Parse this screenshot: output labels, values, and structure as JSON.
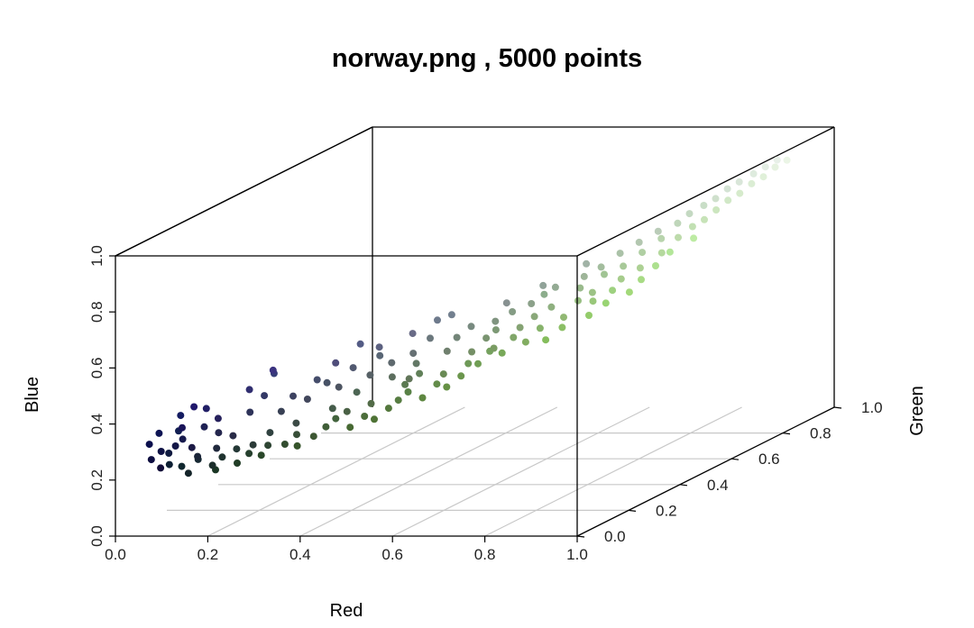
{
  "chart_data": {
    "type": "scatter",
    "projection": "3d",
    "title": "norway.png , 5000 points",
    "xlabel": "Red",
    "ylabel": "Green",
    "zlabel": "Blue",
    "xlim": [
      0.0,
      1.0
    ],
    "ylim": [
      0.0,
      1.0
    ],
    "zlim": [
      0.0,
      1.0
    ],
    "x_ticks": [
      "0.0",
      "0.2",
      "0.4",
      "0.6",
      "0.8",
      "1.0"
    ],
    "y_ticks": [
      "0.0",
      "0.2",
      "0.4",
      "0.6",
      "0.8",
      "1.0"
    ],
    "z_ticks": [
      "0.0",
      "0.2",
      "0.4",
      "0.6",
      "0.8",
      "1.0"
    ],
    "grid": true,
    "n_points": 5000,
    "point_color": "rgb(red, green, blue)",
    "points": [
      [
        0.05,
        0.05,
        0.25
      ],
      [
        0.06,
        0.07,
        0.27
      ],
      [
        0.04,
        0.06,
        0.3
      ],
      [
        0.07,
        0.05,
        0.22
      ],
      [
        0.08,
        0.09,
        0.28
      ],
      [
        0.05,
        0.08,
        0.33
      ],
      [
        0.09,
        0.1,
        0.3
      ],
      [
        0.06,
        0.1,
        0.25
      ],
      [
        0.1,
        0.08,
        0.35
      ],
      [
        0.07,
        0.12,
        0.32
      ],
      [
        0.11,
        0.1,
        0.27
      ],
      [
        0.12,
        0.13,
        0.33
      ],
      [
        0.08,
        0.11,
        0.38
      ],
      [
        0.13,
        0.12,
        0.4
      ],
      [
        0.1,
        0.14,
        0.22
      ],
      [
        0.14,
        0.15,
        0.3
      ],
      [
        0.12,
        0.09,
        0.42
      ],
      [
        0.15,
        0.13,
        0.36
      ],
      [
        0.16,
        0.17,
        0.28
      ],
      [
        0.13,
        0.16,
        0.24
      ],
      [
        0.05,
        0.12,
        0.2
      ],
      [
        0.06,
        0.15,
        0.18
      ],
      [
        0.09,
        0.16,
        0.2
      ],
      [
        0.11,
        0.18,
        0.17
      ],
      [
        0.08,
        0.14,
        0.16
      ],
      [
        0.12,
        0.2,
        0.19
      ],
      [
        0.14,
        0.22,
        0.21
      ],
      [
        0.1,
        0.21,
        0.14
      ],
      [
        0.15,
        0.25,
        0.18
      ],
      [
        0.13,
        0.24,
        0.15
      ],
      [
        0.17,
        0.23,
        0.22
      ],
      [
        0.18,
        0.27,
        0.2
      ],
      [
        0.16,
        0.28,
        0.16
      ],
      [
        0.2,
        0.3,
        0.19
      ],
      [
        0.19,
        0.26,
        0.25
      ],
      [
        0.22,
        0.31,
        0.22
      ],
      [
        0.21,
        0.33,
        0.17
      ],
      [
        0.24,
        0.34,
        0.2
      ],
      [
        0.23,
        0.29,
        0.27
      ],
      [
        0.25,
        0.37,
        0.22
      ],
      [
        0.18,
        0.2,
        0.35
      ],
      [
        0.2,
        0.22,
        0.4
      ],
      [
        0.22,
        0.25,
        0.33
      ],
      [
        0.24,
        0.26,
        0.38
      ],
      [
        0.19,
        0.18,
        0.44
      ],
      [
        0.26,
        0.28,
        0.36
      ],
      [
        0.21,
        0.24,
        0.47
      ],
      [
        0.27,
        0.3,
        0.42
      ],
      [
        0.23,
        0.2,
        0.5
      ],
      [
        0.28,
        0.32,
        0.4
      ],
      [
        0.26,
        0.39,
        0.24
      ],
      [
        0.28,
        0.41,
        0.2
      ],
      [
        0.27,
        0.36,
        0.29
      ],
      [
        0.3,
        0.43,
        0.23
      ],
      [
        0.29,
        0.38,
        0.27
      ],
      [
        0.31,
        0.45,
        0.21
      ],
      [
        0.32,
        0.42,
        0.28
      ],
      [
        0.33,
        0.47,
        0.24
      ],
      [
        0.3,
        0.4,
        0.33
      ],
      [
        0.34,
        0.49,
        0.26
      ],
      [
        0.3,
        0.33,
        0.38
      ],
      [
        0.32,
        0.35,
        0.44
      ],
      [
        0.34,
        0.38,
        0.4
      ],
      [
        0.31,
        0.3,
        0.48
      ],
      [
        0.35,
        0.4,
        0.46
      ],
      [
        0.36,
        0.43,
        0.37
      ],
      [
        0.33,
        0.36,
        0.52
      ],
      [
        0.37,
        0.41,
        0.43
      ],
      [
        0.38,
        0.46,
        0.35
      ],
      [
        0.36,
        0.38,
        0.5
      ],
      [
        0.35,
        0.51,
        0.28
      ],
      [
        0.37,
        0.53,
        0.25
      ],
      [
        0.36,
        0.48,
        0.32
      ],
      [
        0.39,
        0.55,
        0.29
      ],
      [
        0.38,
        0.5,
        0.35
      ],
      [
        0.4,
        0.57,
        0.27
      ],
      [
        0.41,
        0.54,
        0.33
      ],
      [
        0.42,
        0.59,
        0.3
      ],
      [
        0.39,
        0.47,
        0.4
      ],
      [
        0.43,
        0.6,
        0.34
      ],
      [
        0.4,
        0.44,
        0.45
      ],
      [
        0.42,
        0.47,
        0.49
      ],
      [
        0.44,
        0.5,
        0.43
      ],
      [
        0.41,
        0.42,
        0.53
      ],
      [
        0.45,
        0.52,
        0.47
      ],
      [
        0.46,
        0.56,
        0.4
      ],
      [
        0.43,
        0.48,
        0.55
      ],
      [
        0.47,
        0.54,
        0.5
      ],
      [
        0.48,
        0.58,
        0.44
      ],
      [
        0.45,
        0.5,
        0.56
      ],
      [
        0.44,
        0.62,
        0.33
      ],
      [
        0.46,
        0.63,
        0.37
      ],
      [
        0.48,
        0.61,
        0.39
      ],
      [
        0.47,
        0.66,
        0.35
      ],
      [
        0.5,
        0.65,
        0.41
      ],
      [
        0.49,
        0.6,
        0.46
      ],
      [
        0.51,
        0.68,
        0.38
      ],
      [
        0.52,
        0.64,
        0.45
      ],
      [
        0.5,
        0.58,
        0.5
      ],
      [
        0.53,
        0.7,
        0.42
      ],
      [
        0.52,
        0.61,
        0.52
      ],
      [
        0.54,
        0.66,
        0.48
      ],
      [
        0.55,
        0.63,
        0.54
      ],
      [
        0.53,
        0.57,
        0.57
      ],
      [
        0.56,
        0.69,
        0.5
      ],
      [
        0.57,
        0.72,
        0.45
      ],
      [
        0.55,
        0.68,
        0.55
      ],
      [
        0.58,
        0.67,
        0.58
      ],
      [
        0.59,
        0.74,
        0.5
      ],
      [
        0.57,
        0.64,
        0.6
      ],
      [
        0.6,
        0.73,
        0.55
      ],
      [
        0.61,
        0.76,
        0.52
      ],
      [
        0.62,
        0.71,
        0.6
      ],
      [
        0.6,
        0.78,
        0.48
      ],
      [
        0.63,
        0.77,
        0.58
      ],
      [
        0.64,
        0.74,
        0.62
      ],
      [
        0.65,
        0.8,
        0.55
      ],
      [
        0.63,
        0.7,
        0.65
      ],
      [
        0.66,
        0.79,
        0.6
      ],
      [
        0.67,
        0.76,
        0.66
      ],
      [
        0.68,
        0.82,
        0.58
      ],
      [
        0.69,
        0.81,
        0.64
      ],
      [
        0.7,
        0.78,
        0.69
      ],
      [
        0.71,
        0.85,
        0.62
      ],
      [
        0.72,
        0.83,
        0.68
      ],
      [
        0.73,
        0.8,
        0.72
      ],
      [
        0.74,
        0.86,
        0.67
      ],
      [
        0.75,
        0.84,
        0.73
      ],
      [
        0.76,
        0.88,
        0.7
      ],
      [
        0.77,
        0.85,
        0.76
      ],
      [
        0.78,
        0.89,
        0.72
      ],
      [
        0.79,
        0.87,
        0.78
      ],
      [
        0.8,
        0.9,
        0.75
      ],
      [
        0.81,
        0.88,
        0.8
      ],
      [
        0.82,
        0.91,
        0.78
      ],
      [
        0.83,
        0.89,
        0.83
      ],
      [
        0.84,
        0.92,
        0.8
      ],
      [
        0.85,
        0.9,
        0.85
      ],
      [
        0.86,
        0.93,
        0.83
      ],
      [
        0.87,
        0.92,
        0.87
      ],
      [
        0.88,
        0.94,
        0.85
      ],
      [
        0.89,
        0.93,
        0.89
      ],
      [
        0.9,
        0.95,
        0.88
      ],
      [
        0.91,
        0.94,
        0.91
      ],
      [
        0.92,
        0.96,
        0.9
      ],
      [
        0.58,
        0.8,
        0.42
      ],
      [
        0.6,
        0.83,
        0.45
      ],
      [
        0.62,
        0.82,
        0.5
      ],
      [
        0.66,
        0.86,
        0.52
      ],
      [
        0.55,
        0.75,
        0.4
      ],
      [
        0.52,
        0.74,
        0.36
      ],
      [
        0.68,
        0.88,
        0.56
      ],
      [
        0.7,
        0.9,
        0.6
      ],
      [
        0.74,
        0.92,
        0.64
      ],
      [
        0.64,
        0.85,
        0.48
      ]
    ]
  }
}
